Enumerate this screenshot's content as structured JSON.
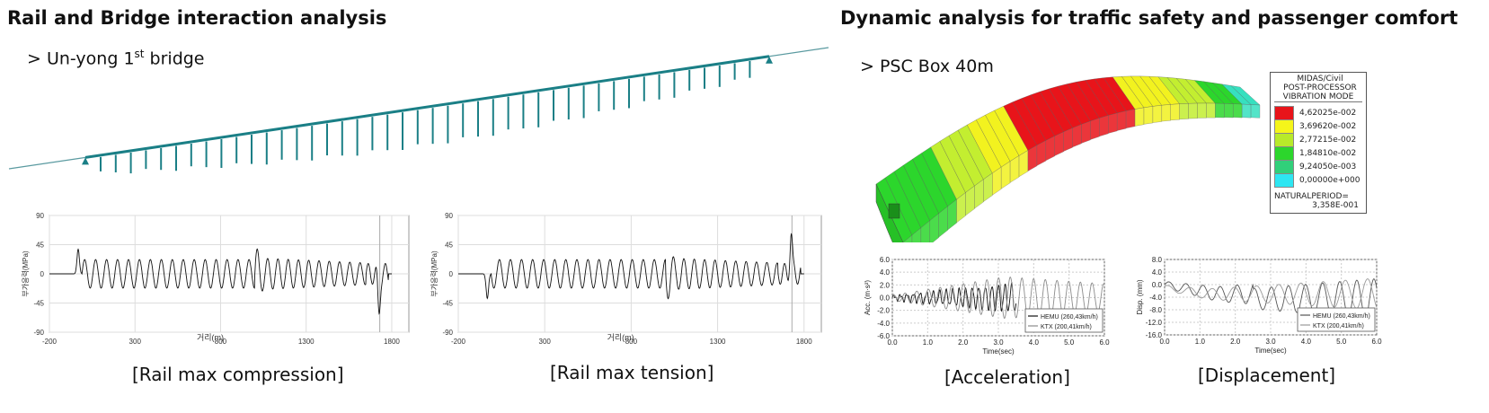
{
  "left": {
    "title": "Rail and Bridge interaction analysis",
    "bullet_prefix": "> Un-yong 1",
    "bullet_sup": "st",
    "bullet_suffix": " bridge",
    "charts": [
      {
        "caption": "[Rail max compression]"
      },
      {
        "caption": "[Rail max tension]"
      }
    ]
  },
  "right": {
    "title": "Dynamic analysis for traffic safety and passenger comfort",
    "bullet": "> PSC Box 40m",
    "legend": {
      "header1": "MIDAS/Civil",
      "header2": "POST-PROCESSOR",
      "header3": "VIBRATION MODE",
      "items": [
        {
          "label": "4,62025e-002",
          "color": "#e8141a"
        },
        {
          "label": "3,69620e-002",
          "color": "#f5f51a"
        },
        {
          "label": "2,77215e-002",
          "color": "#b8ea2a"
        },
        {
          "label": "1,84810e-002",
          "color": "#2cd62c"
        },
        {
          "label": "9,24050e-003",
          "color": "#31d07a"
        },
        {
          "label": "0,00000e+000",
          "color": "#2ee6f2"
        }
      ],
      "period_label": "NATURALPERIOD=",
      "period_value": "3,358E-001"
    },
    "charts": [
      {
        "caption": "[Acceleration]"
      },
      {
        "caption": "[Displacement]"
      }
    ]
  },
  "chart_data": [
    {
      "type": "line",
      "title": "[Rail max compression]",
      "xlabel": "거리(m)",
      "ylabel": "부가응력(MPa)",
      "xlim": [
        -200,
        1900
      ],
      "ylim": [
        -90,
        90
      ],
      "x_ticks": [
        "-200",
        "300",
        "800",
        "1300",
        "1800"
      ],
      "y_ticks": [
        "90",
        "45",
        "0",
        "-45",
        "-90"
      ],
      "grid": true,
      "series": [
        {
          "values": [
            [
              -200,
              0
            ],
            [
              -50,
              0
            ],
            [
              -30,
              38
            ],
            [
              0,
              0
            ],
            [
              20,
              -22
            ],
            [
              1000,
              22
            ],
            [
              1010,
              45
            ],
            [
              1030,
              0
            ],
            [
              1050,
              -32
            ],
            [
              1600,
              22
            ],
            [
              1700,
              -28
            ],
            [
              1720,
              -75
            ],
            [
              1740,
              0
            ],
            [
              1800,
              0
            ]
          ]
        }
      ]
    },
    {
      "type": "line",
      "title": "[Rail max tension]",
      "xlabel": "거리(m)",
      "ylabel": "부가응력(MPa)",
      "xlim": [
        -200,
        1900
      ],
      "ylim": [
        -90,
        90
      ],
      "x_ticks": [
        "-200",
        "300",
        "800",
        "1300",
        "1800"
      ],
      "y_ticks": [
        "90",
        "45",
        "0",
        "-45",
        "-90"
      ],
      "grid": true,
      "series": [
        {
          "values": [
            [
              -200,
              0
            ],
            [
              -30,
              0
            ],
            [
              -10,
              -38
            ],
            [
              20,
              0
            ],
            [
              40,
              22
            ],
            [
              1000,
              -22
            ],
            [
              1010,
              -45
            ],
            [
              1030,
              0
            ],
            [
              1050,
              32
            ],
            [
              1600,
              -22
            ],
            [
              1700,
              28
            ],
            [
              1720,
              68
            ],
            [
              1740,
              0
            ],
            [
              1800,
              0
            ]
          ]
        }
      ]
    },
    {
      "type": "line",
      "title": "[Acceleration]",
      "xlabel": "Time(sec)",
      "ylabel": "Acc. (m·s²)",
      "xlim": [
        0,
        6
      ],
      "ylim": [
        -6,
        6
      ],
      "x_ticks": [
        "0.0",
        "1.0",
        "2.0",
        "3.0",
        "4.0",
        "5.0",
        "6.0"
      ],
      "y_ticks": [
        "6.0",
        "4.0",
        "2.0",
        "0.0",
        "-2.0",
        "-4.0",
        "-6.0"
      ],
      "grid": true,
      "legend_placement": "bottom-right",
      "series": [
        {
          "name": "HEMU (260,43km/h)",
          "color": "#111111",
          "amp_peak": 2.2,
          "duration": 3.5
        },
        {
          "name": "KTX (200,41km/h)",
          "color": "#8c8c8c",
          "amp_peak": 3.5,
          "duration": 6.0
        }
      ]
    },
    {
      "type": "line",
      "title": "[Displacement]",
      "xlabel": "Time(sec)",
      "ylabel": "Disp. (mm)",
      "xlim": [
        0,
        6
      ],
      "ylim": [
        -16,
        8
      ],
      "x_ticks": [
        "0.0",
        "1.0",
        "2.0",
        "3.0",
        "4.0",
        "5.0",
        "6.0"
      ],
      "y_ticks": [
        "8.0",
        "4.0",
        "0.0",
        "-4.0",
        "-8.0",
        "-12.0",
        "-16.0"
      ],
      "grid": true,
      "legend_placement": "bottom-right",
      "series": [
        {
          "name": "HEMU (260,43km/h)",
          "color": "#555555"
        },
        {
          "name": "KTX (200,41km/h)",
          "color": "#999999"
        }
      ]
    }
  ]
}
